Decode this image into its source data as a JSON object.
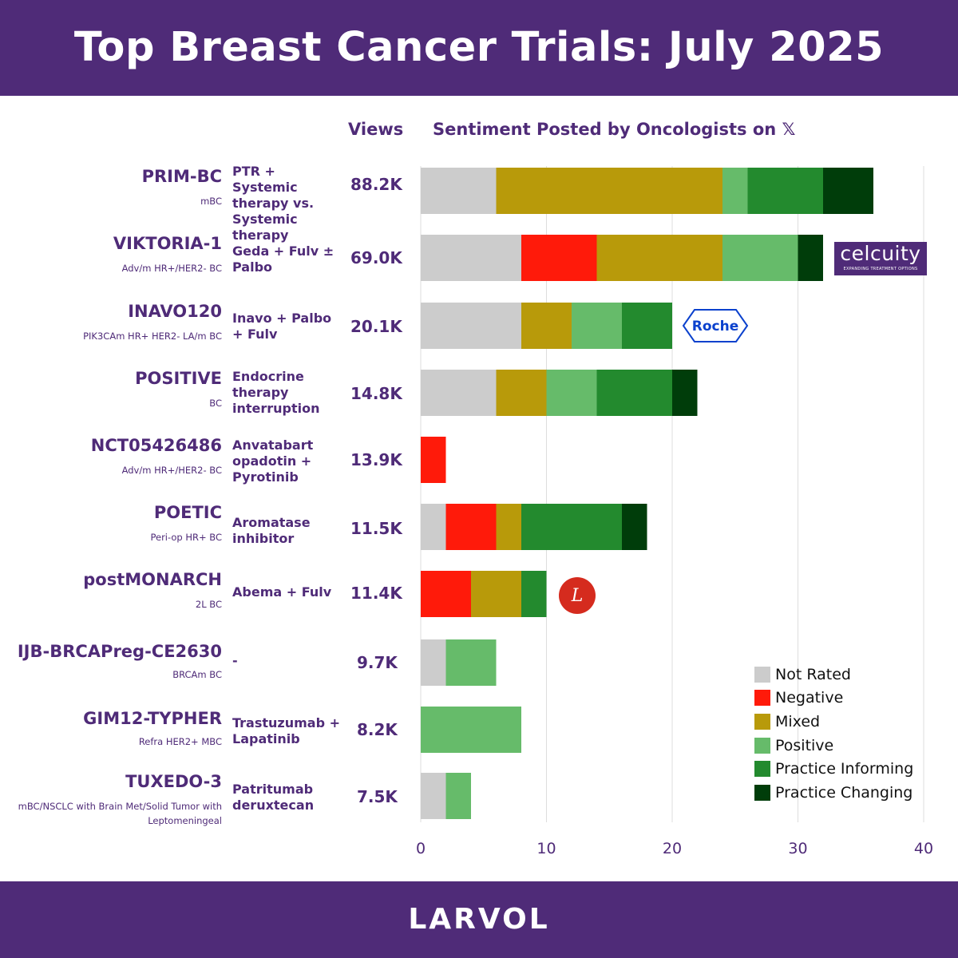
{
  "header": {
    "title": "Top Breast Cancer Trials: July 2025"
  },
  "footer": {
    "brand": "LARVOL"
  },
  "columns": {
    "views_header": "Views",
    "sentiment_header": "Sentiment Posted by Oncologists on",
    "platform_icon": "x-logo-icon"
  },
  "trials": [
    {
      "name": "PRIM-BC",
      "subtitle": "mBC",
      "regimen": "PTR + Systemic therapy vs. Systemic therapy",
      "views": "88.2K"
    },
    {
      "name": "VIKTORIA-1",
      "subtitle": "Adv/m HR+/HER2- BC",
      "regimen": "Geda + Fulv ± Palbo",
      "views": "69.0K",
      "logo": "celcuity"
    },
    {
      "name": "INAVO120",
      "subtitle": "PIK3CAm HR+ HER2- LA/m BC",
      "regimen": "Inavo + Palbo + Fulv",
      "views": "20.1K",
      "logo": "Roche"
    },
    {
      "name": "POSITIVE",
      "subtitle": "BC",
      "regimen": "Endocrine therapy interruption",
      "views": "14.8K"
    },
    {
      "name": "NCT05426486",
      "subtitle": "Adv/m HR+/HER2- BC",
      "regimen": "Anvatabart opadotin + Pyrotinib",
      "views": "13.9K"
    },
    {
      "name": "POETIC",
      "subtitle": "Peri-op HR+ BC",
      "regimen": "Aromatase inhibitor",
      "views": "11.5K"
    },
    {
      "name": "postMONARCH",
      "subtitle": "2L BC",
      "regimen": "Abema + Fulv",
      "views": "11.4K",
      "logo": "lilly-logo-icon"
    },
    {
      "name": "IJB-BRCAPreg-CE2630",
      "subtitle": "BRCAm BC",
      "regimen": "-",
      "views": "9.7K"
    },
    {
      "name": "GIM12-TYPHER",
      "subtitle": "Refra HER2+ MBC",
      "regimen": "Trastuzumab + Lapatinib",
      "views": "8.2K"
    },
    {
      "name": "TUXEDO-3",
      "subtitle": "mBC/NSCLC with Brain Met/Solid Tumor with Leptomeningeal",
      "regimen": "Patritumab deruxtecan",
      "views": "7.5K"
    }
  ],
  "logos": {
    "celcuity": {
      "word": "celcuity",
      "tagline": "EXPANDING TREATMENT OPTIONS"
    },
    "roche": "Roche",
    "lilly": "L"
  },
  "chart_data": {
    "type": "bar",
    "orientation": "horizontal",
    "stacked": true,
    "categories": [
      "PRIM-BC",
      "VIKTORIA-1",
      "INAVO120",
      "POSITIVE",
      "NCT05426486",
      "POETIC",
      "postMONARCH",
      "IJB-BRCAPreg-CE2630",
      "GIM12-TYPHER",
      "TUXEDO-3"
    ],
    "series": [
      {
        "name": "Not Rated",
        "color": "#cccccc",
        "values": [
          6,
          8,
          8,
          6,
          0,
          2,
          0,
          2,
          0,
          2
        ]
      },
      {
        "name": "Negative",
        "color": "#ff1a0a",
        "values": [
          0,
          6,
          0,
          0,
          2,
          4,
          4,
          0,
          0,
          0
        ]
      },
      {
        "name": "Mixed",
        "color": "#b89a0a",
        "values": [
          18,
          10,
          4,
          4,
          0,
          2,
          4,
          0,
          0,
          0
        ]
      },
      {
        "name": "Positive",
        "color": "#66bb6a",
        "values": [
          2,
          6,
          4,
          4,
          0,
          0,
          0,
          4,
          8,
          2
        ]
      },
      {
        "name": "Practice Informing",
        "color": "#238a2e",
        "values": [
          6,
          0,
          4,
          6,
          0,
          8,
          2,
          0,
          0,
          0
        ]
      },
      {
        "name": "Practice Changing",
        "color": "#003d0a",
        "values": [
          4,
          2,
          0,
          2,
          0,
          2,
          0,
          0,
          0,
          0
        ]
      }
    ],
    "xlim": [
      0,
      40
    ],
    "xticks": [
      0,
      10,
      20,
      30,
      40
    ],
    "grid": true,
    "legend_position": "bottom-right"
  }
}
